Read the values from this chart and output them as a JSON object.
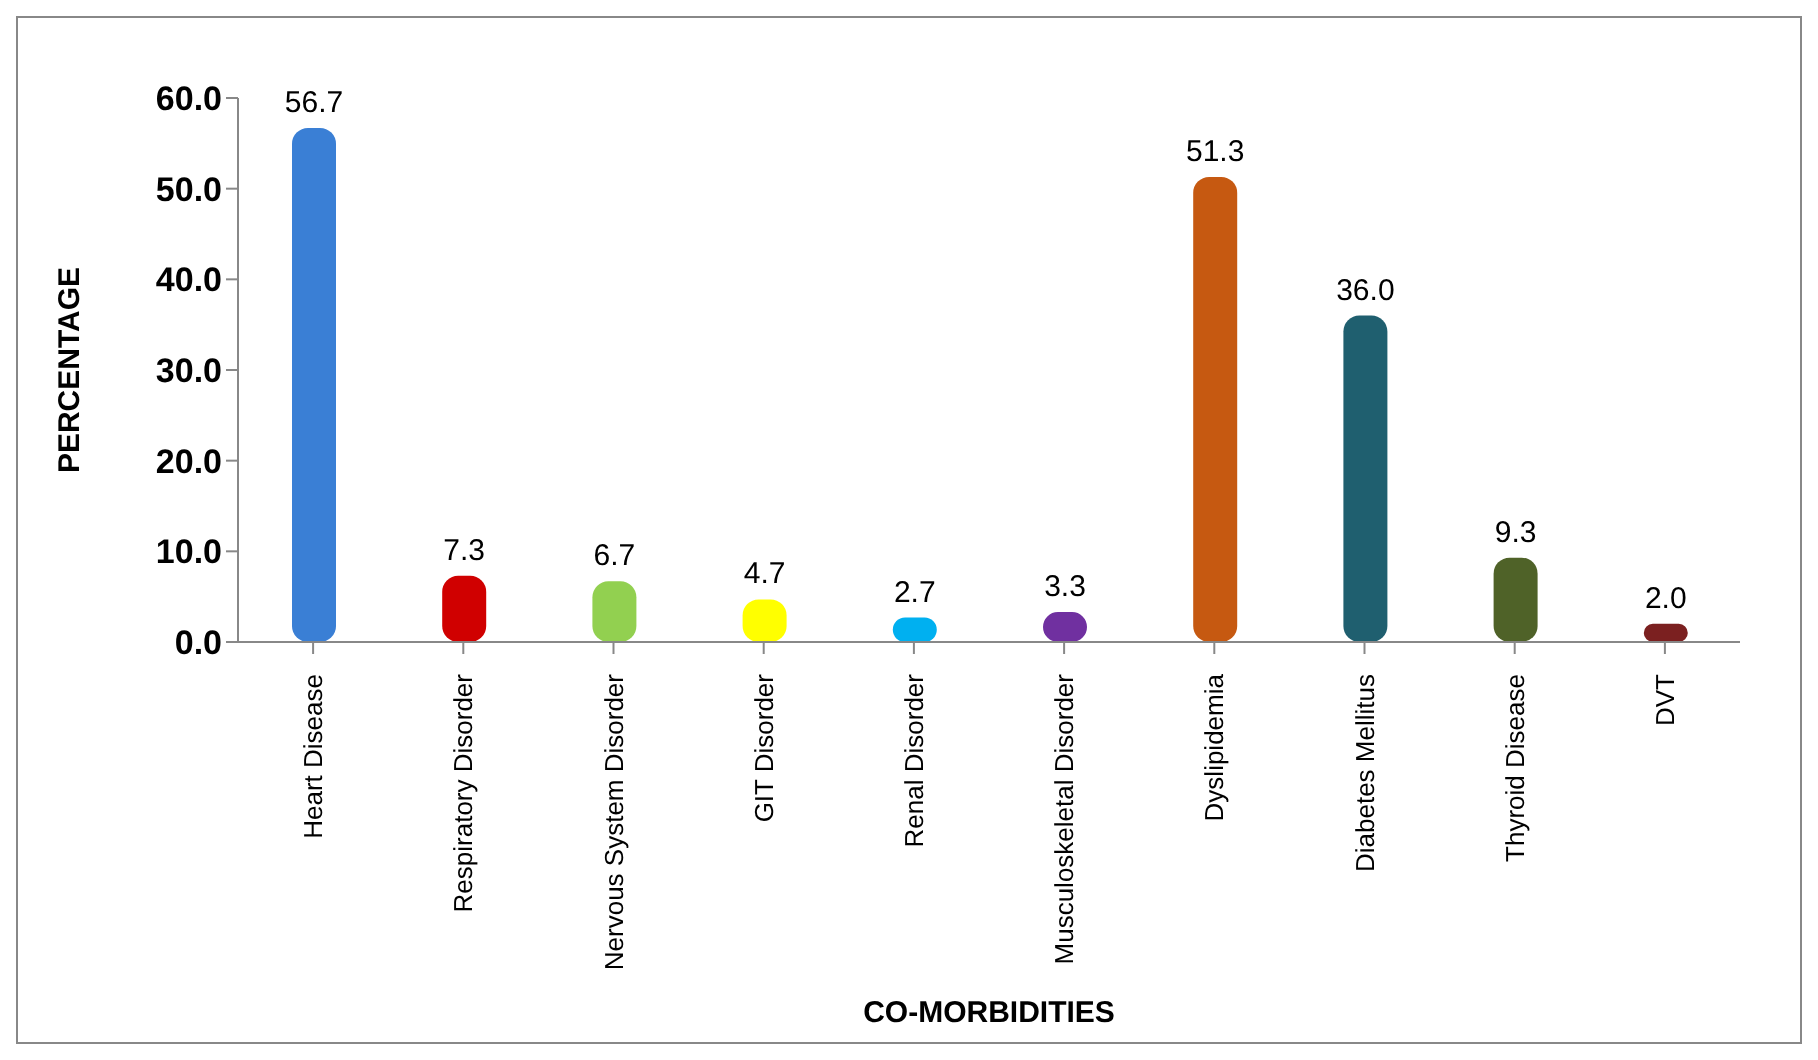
{
  "chart_data": {
    "type": "bar",
    "xlabel": "CO-MORBIDITIES",
    "ylabel": "PERCENTAGE",
    "categories": [
      "Heart Disease",
      "Respiratory Disorder",
      "Nervous System Disorder",
      "GIT Disorder",
      "Renal Disorder",
      "Musculoskeletal Disorder",
      "Dyslipidemia",
      "Diabetes Mellitus",
      "Thyroid Disease",
      "DVT"
    ],
    "values": [
      56.7,
      7.3,
      6.7,
      4.7,
      2.7,
      3.3,
      51.3,
      36.0,
      9.3,
      2.0
    ],
    "value_labels": [
      "56.7",
      "7.3",
      "6.7",
      "4.7",
      "2.7",
      "3.3",
      "51.3",
      "36.0",
      "9.3",
      "2.0"
    ],
    "colors": [
      "#3a7fd5",
      "#d00000",
      "#92d050",
      "#ffff00",
      "#00b0f0",
      "#7030a0",
      "#c65911",
      "#1f5f6f",
      "#4f6228",
      "#7b2020"
    ],
    "ylim": [
      0,
      60
    ],
    "yticks": [
      {
        "value": 0,
        "label": "0.0"
      },
      {
        "value": 10,
        "label": "10.0"
      },
      {
        "value": 20,
        "label": "20.0"
      },
      {
        "value": 30,
        "label": "30.0"
      },
      {
        "value": 40,
        "label": "40.0"
      },
      {
        "value": 50,
        "label": "50.0"
      },
      {
        "value": 60,
        "label": "60.0"
      }
    ],
    "grid": false
  }
}
